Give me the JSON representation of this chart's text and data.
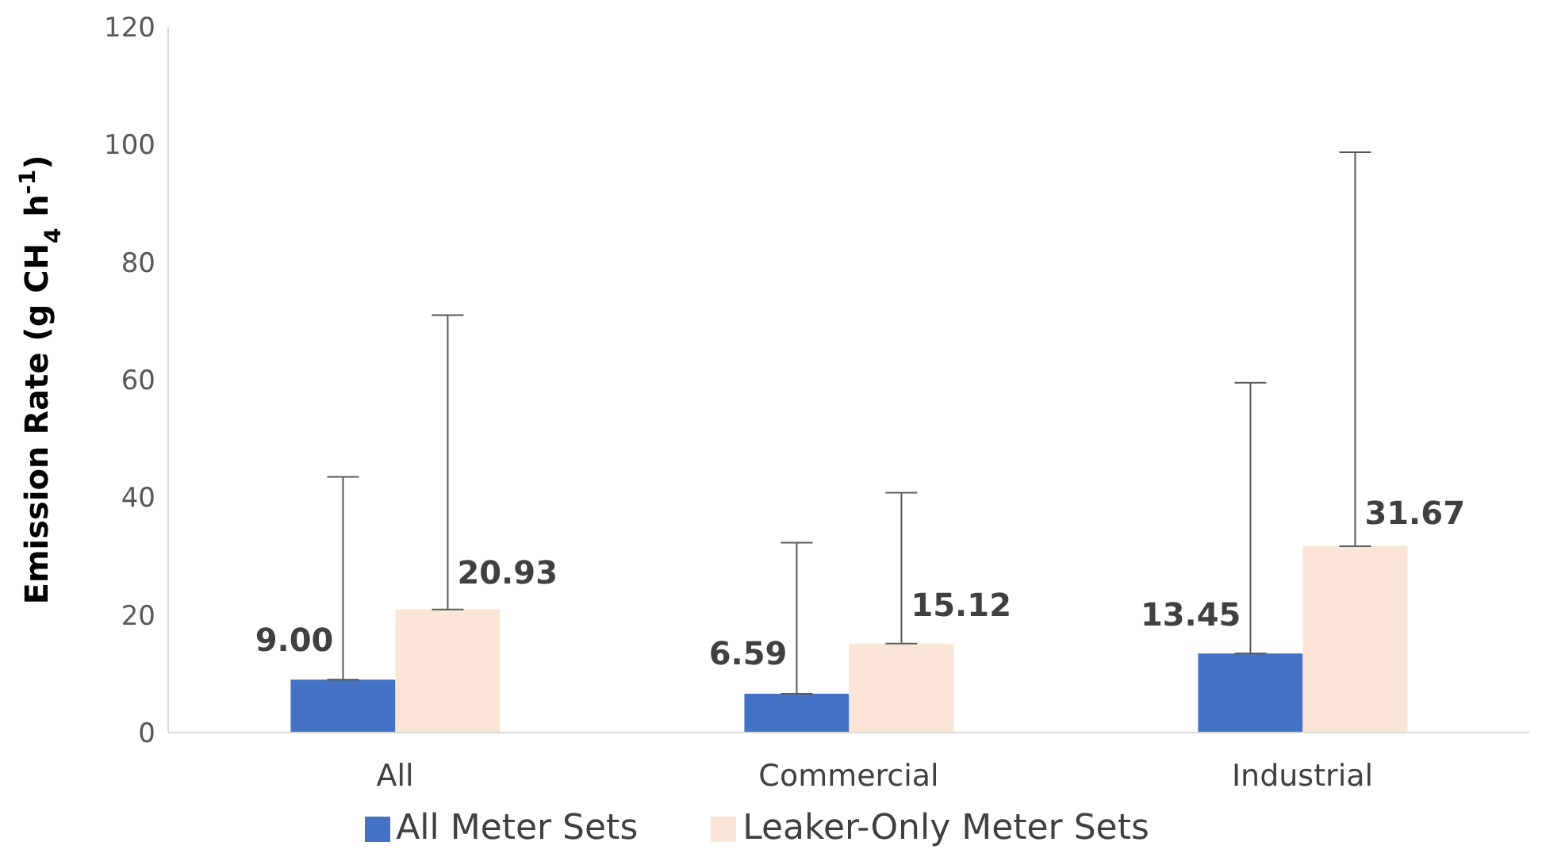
{
  "chart_data": {
    "type": "bar",
    "ylabel": "Emission Rate (g CH$_{4}$ h$^{-1}$)",
    "categories": [
      "All",
      "Commercial",
      "Industrial"
    ],
    "series": [
      {
        "name": "All Meter Sets",
        "color": "#4472c4",
        "values": [
          9.0,
          6.59,
          13.45
        ],
        "value_labels": [
          "9.00",
          "6.59",
          "13.45"
        ],
        "errors": [
          [
            9.0,
            43.5
          ],
          [
            6.59,
            32.3
          ],
          [
            13.45,
            59.5
          ]
        ]
      },
      {
        "name": "Leaker-Only Meter Sets",
        "color": "#fbe5d6",
        "values": [
          20.93,
          15.12,
          31.67
        ],
        "value_labels": [
          "20.93",
          "15.12",
          "31.67"
        ],
        "errors": [
          [
            20.93,
            71
          ],
          [
            15.12,
            40.8
          ],
          [
            31.67,
            98.7
          ]
        ]
      }
    ],
    "ylim": [
      0,
      120
    ],
    "yticks": [
      0,
      20,
      40,
      60,
      80,
      100,
      120
    ],
    "grid": false,
    "legend": "bottom"
  }
}
